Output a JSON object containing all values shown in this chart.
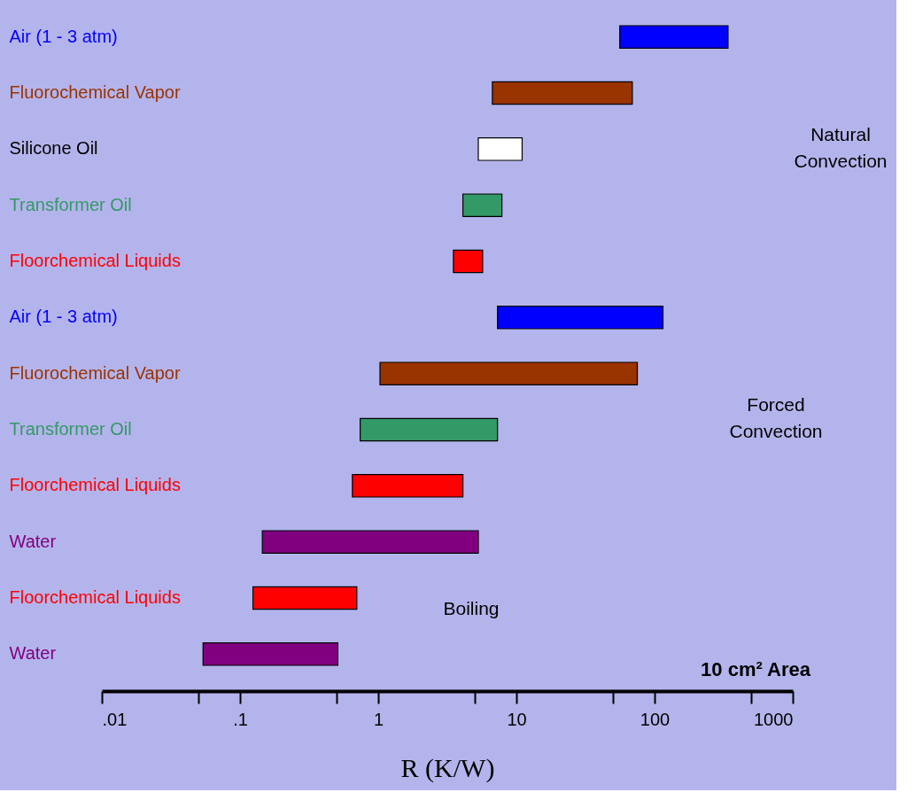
{
  "chart_data": {
    "type": "bar",
    "orientation": "horizontal",
    "xlabel": "R (K/W)",
    "log": "x",
    "categories": [
      "Air (1 - 3 atm)",
      "Fluorochemical Vapor",
      "Silicone Oil",
      "Transformer Oil",
      "Floorchemical Liquids",
      "Air (1 - 3 atm)",
      "Fluorochemical Vapor",
      "Transformer Oil",
      "Floorchemical Liquids",
      "Water",
      "Floorchemical Liquids",
      "Water"
    ],
    "base": [
      56,
      6.7,
      5.3,
      4.1,
      3.5,
      7.3,
      1.03,
      0.74,
      0.65,
      0.145,
      0.124,
      0.054
    ],
    "values": [
      284,
      62.3,
      5.7,
      3.75,
      2.2,
      107.7,
      73.97,
      6.56,
      3.45,
      5.155,
      0.576,
      0.456
    ],
    "colors": [
      "#0000ff",
      "#993300",
      "#ffffff",
      "#339966",
      "#ff0000",
      "#0000ff",
      "#993300",
      "#339966",
      "#ff0000",
      "#800080",
      "#ff0000",
      "#800080"
    ],
    "xlim": [
      0.01,
      1000
    ],
    "xticks": [
      {
        "value": 0.01,
        "label": ".01"
      },
      {
        "value": 0.05,
        "label": null
      },
      {
        "value": 0.1,
        "label": ".1"
      },
      {
        "value": 0.5,
        "label": null
      },
      1,
      {
        "value": 5,
        "label": null
      },
      10,
      {
        "value": 50,
        "label": null
      },
      100,
      {
        "value": 500,
        "label": null
      },
      1000
    ],
    "grid": false,
    "annotations": [
      "Natural Convection",
      "Forced Convection",
      "Boiling",
      "10 cm² Area"
    ]
  }
}
